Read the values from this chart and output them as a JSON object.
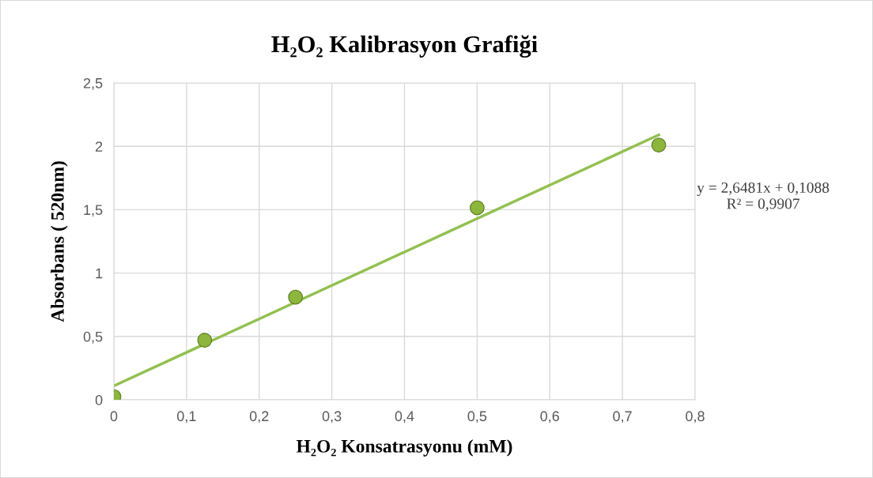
{
  "chart_data": {
    "type": "scatter",
    "title": "H₂O₂ Kalibrasyon Grafiği",
    "xlabel": "H₂O₂ Konsatrasyonu (mM)",
    "ylabel": "Absorbans ( 520nm)",
    "series": [
      {
        "color": "#8cb63c",
        "x": [
          0,
          0.125,
          0.25,
          0.5,
          0.75
        ],
        "values": [
          0.025,
          0.47,
          0.81,
          1.515,
          2.01
        ],
        "marker": "circle"
      },
      {
        "type": "line",
        "color": "#92c050",
        "x": [
          0,
          0.75
        ],
        "values": [
          0.11,
          2.09
        ],
        "marker": "none",
        "line_style": "solid"
      }
    ],
    "annotations": [
      "y = 2,6481x + 0,1088\nR² = 0,9907"
    ],
    "xlim": [
      0,
      0.8
    ],
    "ylim": [
      0,
      2.5
    ],
    "xticks": [
      0,
      {
        "value": 0.1,
        "label": "0,1"
      },
      {
        "value": 0.2,
        "label": "0,2"
      },
      {
        "value": 0.3,
        "label": "0,3"
      },
      {
        "value": 0.4,
        "label": "0,4"
      },
      {
        "value": 0.5,
        "label": "0,5"
      },
      {
        "value": 0.6,
        "label": "0,6"
      },
      {
        "value": 0.7,
        "label": "0,7"
      },
      {
        "value": 0.8,
        "label": "0,8"
      }
    ],
    "yticks": [
      0,
      {
        "value": 0.5,
        "label": "0,5"
      },
      1,
      {
        "value": 1.5,
        "label": "1,5"
      },
      2,
      {
        "value": 2.5,
        "label": "2,5"
      }
    ],
    "grid": true,
    "legend": false
  }
}
